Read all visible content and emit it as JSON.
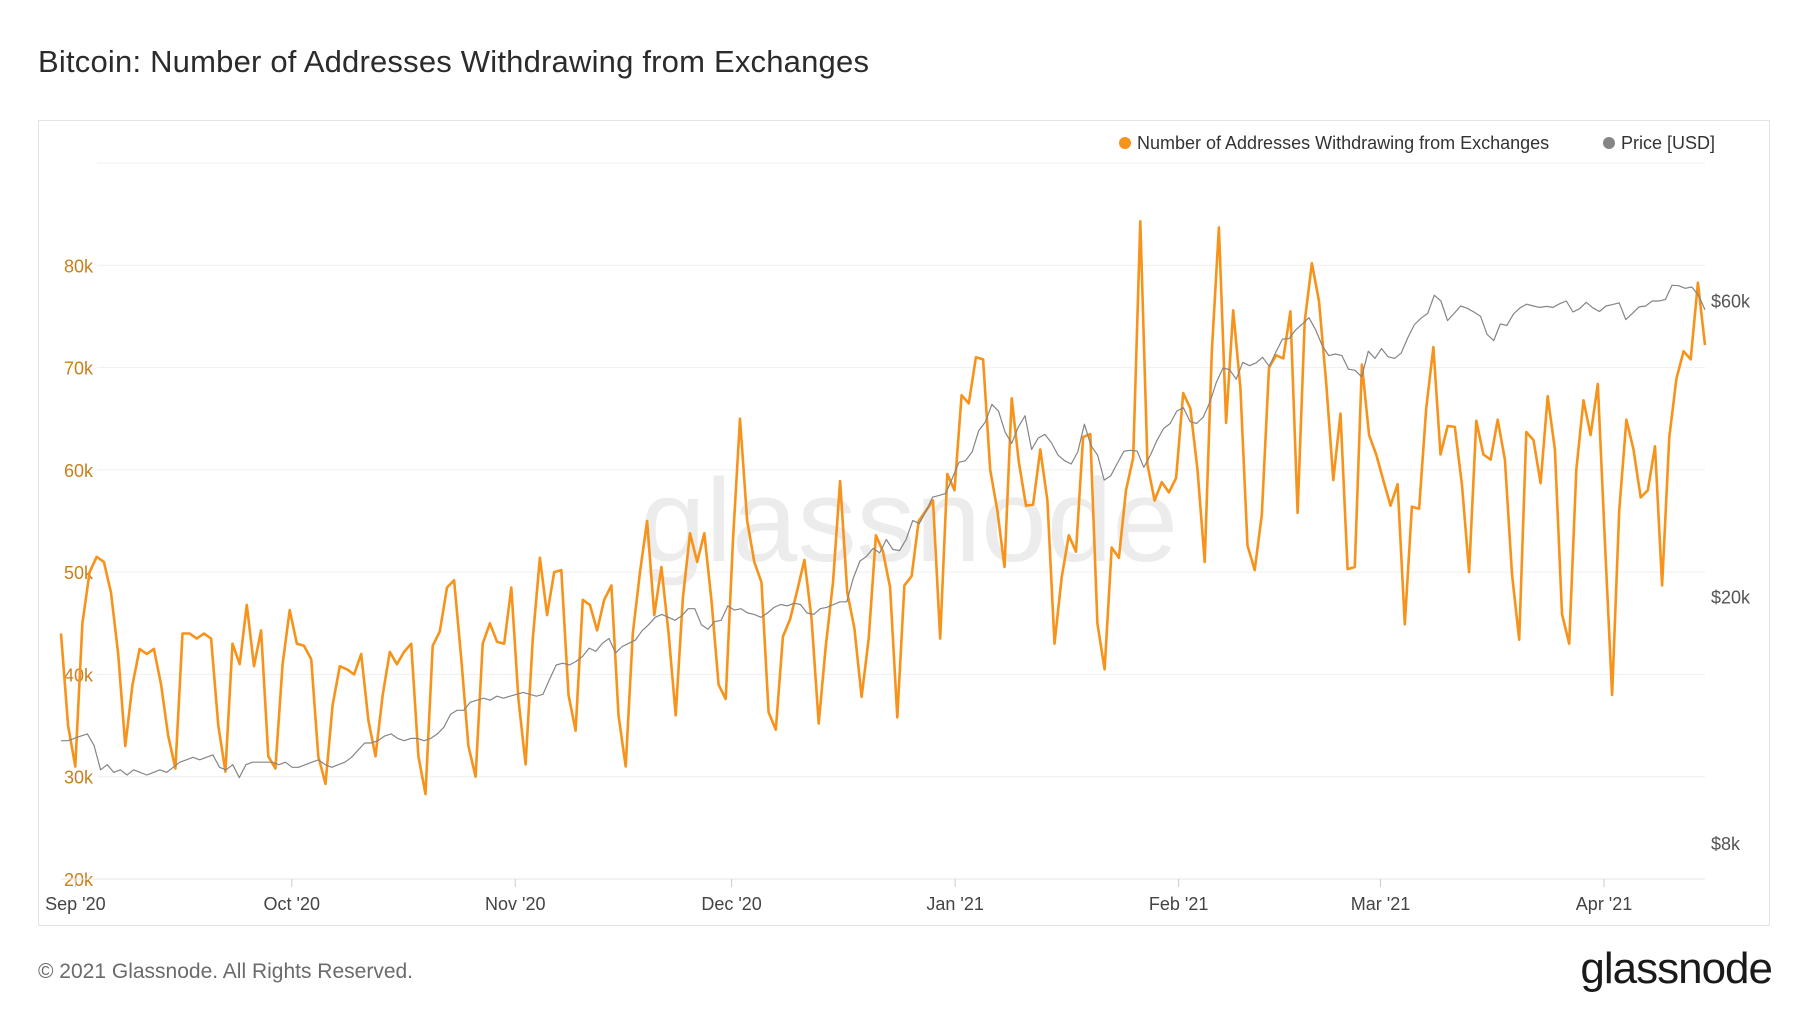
{
  "page": {
    "title": "Bitcoin: Number of Addresses Withdrawing from Exchanges",
    "copyright": "© 2021 Glassnode. All Rights Reserved.",
    "logo": "glassnode",
    "watermark": "glassnode"
  },
  "chart_data": {
    "type": "line",
    "title": "Bitcoin: Number of Addresses Withdrawing from Exchanges",
    "legend_position": "top-right",
    "grid": true,
    "x_start_date": "2020-08-30",
    "x_range": [
      "2020-08-30",
      "2021-04-15"
    ],
    "x_ticks": [
      {
        "date": "2020-09-01",
        "label": "Sep '20"
      },
      {
        "date": "2020-10-01",
        "label": "Oct '20"
      },
      {
        "date": "2020-11-01",
        "label": "Nov '20"
      },
      {
        "date": "2020-12-01",
        "label": "Dec '20"
      },
      {
        "date": "2021-01-01",
        "label": "Jan '21"
      },
      {
        "date": "2021-02-01",
        "label": "Feb '21"
      },
      {
        "date": "2021-03-01",
        "label": "Mar '21"
      },
      {
        "date": "2021-04-01",
        "label": "Apr '21"
      }
    ],
    "left_axis": {
      "ylim": [
        20000,
        90000
      ],
      "ticks": [
        20000,
        30000,
        40000,
        50000,
        60000,
        70000,
        80000
      ],
      "tick_labels": [
        "20k",
        "30k",
        "40k",
        "50k",
        "60k",
        "70k",
        "80k"
      ],
      "color": "#c8801e"
    },
    "right_axis": {
      "scale": "log",
      "ylim": [
        7000,
        100000
      ],
      "ticks": [
        8000,
        20000,
        60000
      ],
      "tick_labels": [
        "$8k",
        "$20k",
        "$60k"
      ],
      "color": "#555555"
    },
    "series": [
      {
        "name": "Number of Addresses Withdrawing from Exchanges",
        "axis": "left",
        "color": "#f7931a",
        "values": [
          44000,
          35000,
          31000,
          45000,
          50000,
          51500,
          51000,
          48000,
          42000,
          33000,
          39000,
          42500,
          42000,
          42500,
          39000,
          34000,
          30800,
          44000,
          44000,
          43500,
          44000,
          43500,
          35000,
          30500,
          43000,
          41000,
          46800,
          40800,
          44300,
          32000,
          30800,
          41000,
          46300,
          43000,
          42800,
          41500,
          32000,
          29300,
          37000,
          40800,
          40500,
          40000,
          42000,
          35500,
          32000,
          38000,
          42200,
          41000,
          42200,
          43000,
          32000,
          28300,
          42800,
          44200,
          48500,
          49200,
          41500,
          33000,
          30000,
          43000,
          45000,
          43200,
          43000,
          48500,
          37500,
          31200,
          43500,
          51400,
          45800,
          50000,
          50200,
          38000,
          34500,
          47300,
          46800,
          44300,
          47300,
          48700,
          36000,
          31000,
          44000,
          50000,
          55000,
          45800,
          50500,
          44000,
          36000,
          47500,
          53800,
          51000,
          53800,
          47200,
          39000,
          37600,
          53000,
          65000,
          55000,
          51000,
          49000,
          36300,
          34600,
          43700,
          45400,
          48200,
          51200,
          45500,
          35200,
          42800,
          49000,
          58900,
          48000,
          44500,
          37800,
          43500,
          53600,
          52000,
          48500,
          35800,
          48700,
          49600,
          55000,
          56000,
          57000,
          43500,
          59600,
          58000,
          67300,
          66500,
          71000,
          70800,
          60000,
          56000,
          50500,
          67000,
          60800,
          56500,
          56600,
          62000,
          57000,
          43000,
          49500,
          53600,
          52000,
          63200,
          63500,
          45000,
          40500,
          52400,
          51400,
          58000,
          61200,
          84300,
          60500,
          57000,
          58800,
          57800,
          59200,
          67500,
          66000,
          60000,
          51000,
          71500,
          83700,
          64600,
          75600,
          68000,
          52600,
          50200,
          55600,
          70000,
          71200,
          70900,
          75500,
          55800,
          74500,
          80200,
          76500,
          68500,
          59000,
          65500,
          50300,
          50500,
          70300,
          63400,
          61500,
          59000,
          56500,
          58600,
          44900,
          56400,
          56200,
          66000,
          72000,
          61500,
          64300,
          64200,
          58500,
          50000,
          64800,
          61500,
          61000,
          64900,
          61000,
          49800,
          43400,
          63700,
          62900,
          58700,
          67200,
          62000,
          45900,
          43000,
          60000,
          66800,
          63400,
          68400,
          53000,
          38000,
          56000,
          64900,
          62000,
          57300,
          58000,
          62300,
          48700,
          63200,
          68900,
          71600,
          70800,
          78300,
          72200
        ]
      },
      {
        "name": "Price [USD]",
        "axis": "right",
        "color": "#858585",
        "values": [
          11700,
          11700,
          11800,
          11900,
          12000,
          11500,
          10500,
          10700,
          10400,
          10500,
          10300,
          10500,
          10400,
          10300,
          10400,
          10500,
          10400,
          10600,
          10800,
          10900,
          11000,
          10900,
          11000,
          11100,
          10600,
          10500,
          10700,
          10200,
          10700,
          10800,
          10800,
          10800,
          10800,
          10700,
          10800,
          10600,
          10600,
          10700,
          10800,
          10900,
          10700,
          10600,
          10700,
          10800,
          11000,
          11300,
          11600,
          11600,
          11700,
          11900,
          12000,
          11800,
          11700,
          11800,
          11800,
          11700,
          11800,
          12000,
          12300,
          12900,
          13100,
          13100,
          13500,
          13600,
          13700,
          13600,
          13800,
          13700,
          13800,
          13900,
          14000,
          13900,
          13800,
          13900,
          14700,
          15500,
          15600,
          15500,
          15700,
          16000,
          16500,
          16300,
          16800,
          17100,
          16200,
          16600,
          16800,
          17000,
          17600,
          18000,
          18500,
          18700,
          18500,
          18300,
          18600,
          19100,
          19100,
          18000,
          17700,
          18200,
          18300,
          19300,
          19000,
          19100,
          18800,
          18700,
          18500,
          18800,
          19200,
          19400,
          19300,
          19500,
          19400,
          18800,
          18700,
          19100,
          19200,
          19400,
          19600,
          19600,
          21400,
          22800,
          23200,
          23900,
          23500,
          24700,
          23800,
          23700,
          24700,
          26500,
          26200,
          27400,
          28900,
          29100,
          29300,
          31000,
          32900,
          33100,
          34200,
          37000,
          38200,
          40800,
          39800,
          36800,
          35300,
          37500,
          39100,
          34500,
          36000,
          36500,
          35400,
          33800,
          33100,
          32700,
          34200,
          37900,
          35000,
          33800,
          30800,
          31300,
          32800,
          34300,
          34400,
          34300,
          32300,
          33800,
          35700,
          37300,
          38000,
          39800,
          40300,
          38300,
          38000,
          38900,
          41100,
          44300,
          46700,
          46400,
          44800,
          47700,
          47100,
          47600,
          48600,
          47000,
          49500,
          52000,
          52100,
          53800,
          55000,
          56300,
          53900,
          50800,
          48900,
          49200,
          48900,
          46500,
          46300,
          45200,
          49700,
          48400,
          50200,
          48700,
          48400,
          49400,
          52300,
          54900,
          56200,
          57200,
          61200,
          59900,
          55700,
          57200,
          58800,
          58300,
          57500,
          56600,
          52900,
          51700,
          55000,
          54700,
          57100,
          58400,
          59200,
          58800,
          58500,
          58700,
          58500,
          59300,
          59900,
          57500,
          58200,
          59600,
          58400,
          57600,
          58800,
          59100,
          59500,
          55900,
          57200,
          58600,
          58800,
          59900,
          59900,
          60200,
          63500,
          63400,
          62800,
          63100,
          61200,
          58000
        ]
      }
    ]
  }
}
